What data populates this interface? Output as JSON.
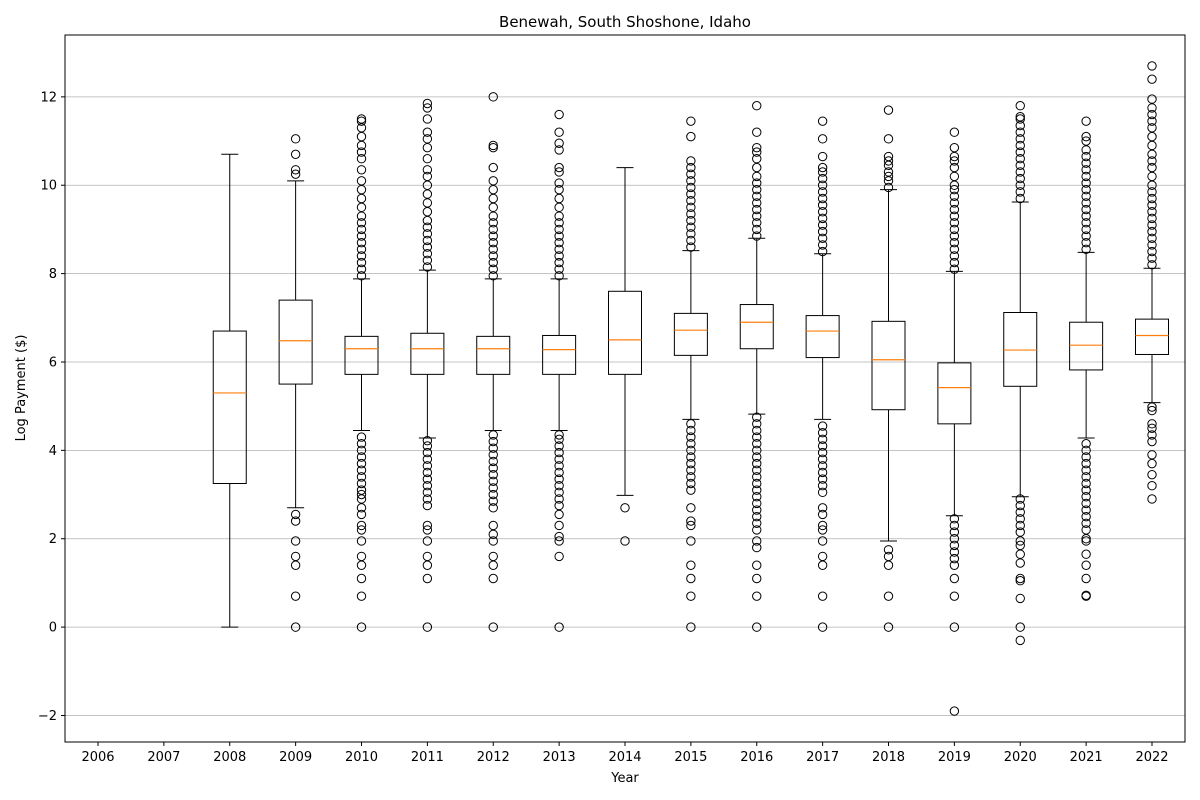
{
  "chart_data": {
    "type": "box",
    "title": "Benewah, South Shoshone, Idaho",
    "xlabel": "Year",
    "ylabel": "Log Payment ($)",
    "ylim": [
      -2.6,
      13.4
    ],
    "yticks": [
      -2,
      0,
      2,
      4,
      6,
      8,
      10,
      12
    ],
    "grid": "y",
    "colors": {
      "box": "#000000",
      "median": "#ff7f0e",
      "grid": "#b0b0b0"
    },
    "categories": [
      "2006",
      "2007",
      "2008",
      "2009",
      "2010",
      "2011",
      "2012",
      "2013",
      "2014",
      "2015",
      "2016",
      "2017",
      "2018",
      "2019",
      "2020",
      "2021",
      "2022"
    ],
    "boxes": [
      null,
      null,
      {
        "whislo": 0.0,
        "q1": 3.25,
        "median": 5.3,
        "q3": 6.7,
        "whishi": 10.7,
        "fliers": []
      },
      {
        "whislo": 2.7,
        "q1": 5.5,
        "median": 6.48,
        "q3": 7.4,
        "whishi": 10.1,
        "fliers": [
          0,
          0.7,
          1.4,
          1.6,
          1.95,
          2.4,
          2.55,
          10.25,
          10.35,
          10.7,
          11.05
        ]
      },
      {
        "whislo": 4.45,
        "q1": 5.72,
        "median": 6.3,
        "q3": 6.58,
        "whishi": 7.88,
        "fliers": [
          0,
          0.7,
          1.1,
          1.4,
          1.6,
          1.95,
          2.2,
          2.3,
          2.55,
          2.7,
          2.9,
          3.0,
          3.1,
          3.25,
          3.4,
          3.55,
          3.7,
          3.85,
          4.0,
          4.15,
          4.3,
          7.95,
          8.1,
          8.25,
          8.4,
          8.55,
          8.7,
          8.85,
          9.0,
          9.15,
          9.3,
          9.5,
          9.7,
          9.9,
          10.1,
          10.35,
          10.6,
          10.75,
          10.9,
          11.1,
          11.3,
          11.45,
          11.5
        ]
      },
      {
        "whislo": 4.28,
        "q1": 5.72,
        "median": 6.3,
        "q3": 6.65,
        "whishi": 8.08,
        "fliers": [
          0,
          1.1,
          1.4,
          1.6,
          1.95,
          2.2,
          2.3,
          2.75,
          2.9,
          3.05,
          3.2,
          3.35,
          3.5,
          3.65,
          3.8,
          3.95,
          4.1,
          4.22,
          8.15,
          8.3,
          8.45,
          8.6,
          8.75,
          8.9,
          9.05,
          9.2,
          9.4,
          9.6,
          9.8,
          10.0,
          10.2,
          10.35,
          10.6,
          10.85,
          11.05,
          11.2,
          11.5,
          11.75,
          11.85
        ]
      },
      {
        "whislo": 4.45,
        "q1": 5.72,
        "median": 6.3,
        "q3": 6.58,
        "whishi": 7.88,
        "fliers": [
          0,
          1.1,
          1.4,
          1.6,
          1.95,
          2.1,
          2.3,
          2.7,
          2.85,
          3.0,
          3.15,
          3.3,
          3.45,
          3.6,
          3.75,
          3.9,
          4.05,
          4.2,
          4.35,
          7.95,
          8.1,
          8.25,
          8.4,
          8.55,
          8.7,
          8.85,
          9.0,
          9.15,
          9.3,
          9.5,
          9.7,
          9.9,
          10.1,
          10.4,
          10.85,
          10.9,
          12.0
        ]
      },
      {
        "whislo": 4.45,
        "q1": 5.72,
        "median": 6.28,
        "q3": 6.6,
        "whishi": 7.88,
        "fliers": [
          0,
          1.6,
          1.95,
          2.05,
          2.3,
          2.55,
          2.75,
          2.9,
          3.05,
          3.2,
          3.35,
          3.5,
          3.65,
          3.8,
          3.95,
          4.1,
          4.25,
          4.35,
          7.95,
          8.1,
          8.25,
          8.4,
          8.55,
          8.7,
          8.85,
          9.0,
          9.15,
          9.3,
          9.5,
          9.7,
          9.9,
          10.05,
          10.3,
          10.4,
          10.8,
          10.95,
          11.2,
          11.6
        ]
      },
      {
        "whislo": 2.98,
        "q1": 5.72,
        "median": 6.5,
        "q3": 7.6,
        "whishi": 10.4,
        "fliers": [
          1.95,
          2.7
        ]
      },
      {
        "whislo": 4.7,
        "q1": 6.15,
        "median": 6.72,
        "q3": 7.1,
        "whishi": 8.52,
        "fliers": [
          0,
          0.7,
          1.1,
          1.4,
          1.95,
          2.3,
          2.4,
          2.7,
          3.1,
          3.25,
          3.4,
          3.55,
          3.7,
          3.85,
          4.0,
          4.15,
          4.3,
          4.45,
          4.6,
          8.6,
          8.75,
          8.9,
          9.05,
          9.2,
          9.35,
          9.5,
          9.65,
          9.8,
          9.95,
          10.1,
          10.25,
          10.4,
          10.55,
          11.1,
          11.45
        ]
      },
      {
        "whislo": 4.82,
        "q1": 6.3,
        "median": 6.9,
        "q3": 7.3,
        "whishi": 8.8,
        "fliers": [
          0,
          0.7,
          1.1,
          1.4,
          1.8,
          1.95,
          2.2,
          2.35,
          2.5,
          2.65,
          2.8,
          2.95,
          3.1,
          3.25,
          3.4,
          3.55,
          3.7,
          3.85,
          4.0,
          4.15,
          4.3,
          4.45,
          4.6,
          4.75,
          8.85,
          9.0,
          9.15,
          9.3,
          9.45,
          9.6,
          9.75,
          9.9,
          10.05,
          10.2,
          10.4,
          10.6,
          10.75,
          10.85,
          11.2,
          11.8
        ]
      },
      {
        "whislo": 4.7,
        "q1": 6.1,
        "median": 6.7,
        "q3": 7.05,
        "whishi": 8.45,
        "fliers": [
          0,
          0.7,
          1.4,
          1.6,
          1.95,
          2.2,
          2.3,
          2.55,
          2.7,
          3.05,
          3.2,
          3.35,
          3.5,
          3.65,
          3.8,
          3.95,
          4.1,
          4.25,
          4.4,
          4.55,
          8.5,
          8.65,
          8.8,
          8.95,
          9.1,
          9.25,
          9.4,
          9.55,
          9.7,
          9.85,
          10.0,
          10.15,
          10.3,
          10.4,
          10.65,
          11.05,
          11.45
        ]
      },
      {
        "whislo": 1.95,
        "q1": 4.92,
        "median": 6.05,
        "q3": 6.92,
        "whishi": 9.9,
        "fliers": [
          0,
          0.7,
          1.4,
          1.6,
          1.75,
          9.95,
          10.1,
          10.2,
          10.3,
          10.45,
          10.55,
          10.65,
          11.05,
          11.7
        ]
      },
      {
        "whislo": 2.52,
        "q1": 4.6,
        "median": 5.42,
        "q3": 5.98,
        "whishi": 8.05,
        "fliers": [
          -1.9,
          0,
          0.7,
          1.1,
          1.4,
          1.55,
          1.7,
          1.85,
          2.0,
          2.15,
          2.3,
          2.45,
          8.1,
          8.25,
          8.4,
          8.55,
          8.7,
          8.85,
          9.0,
          9.15,
          9.3,
          9.45,
          9.6,
          9.75,
          9.9,
          10.0,
          10.2,
          10.4,
          10.55,
          10.65,
          10.85,
          11.2
        ]
      },
      {
        "whislo": 2.95,
        "q1": 5.45,
        "median": 6.27,
        "q3": 7.12,
        "whishi": 9.62,
        "fliers": [
          -0.3,
          0,
          0.65,
          1.05,
          1.1,
          1.45,
          1.65,
          1.85,
          1.95,
          2.15,
          2.3,
          2.45,
          2.6,
          2.75,
          2.9,
          9.7,
          9.85,
          10.0,
          10.15,
          10.3,
          10.45,
          10.6,
          10.75,
          10.9,
          11.05,
          11.2,
          11.35,
          11.5,
          11.55,
          11.8
        ]
      },
      {
        "whislo": 4.28,
        "q1": 5.82,
        "median": 6.38,
        "q3": 6.9,
        "whishi": 8.48,
        "fliers": [
          0.7,
          0.72,
          1.1,
          1.4,
          1.65,
          1.95,
          2.0,
          2.2,
          2.35,
          2.5,
          2.65,
          2.8,
          2.95,
          3.1,
          3.25,
          3.4,
          3.55,
          3.7,
          3.85,
          4.0,
          4.15,
          8.55,
          8.7,
          8.85,
          9.0,
          9.15,
          9.3,
          9.45,
          9.6,
          9.75,
          9.9,
          10.05,
          10.2,
          10.35,
          10.5,
          10.65,
          10.8,
          11.0,
          11.1,
          11.45
        ]
      },
      {
        "whislo": 5.08,
        "q1": 6.17,
        "median": 6.6,
        "q3": 6.97,
        "whishi": 8.12,
        "fliers": [
          2.9,
          3.2,
          3.45,
          3.7,
          3.9,
          4.2,
          4.35,
          4.5,
          4.6,
          4.9,
          4.98,
          8.2,
          8.35,
          8.5,
          8.65,
          8.8,
          8.95,
          9.1,
          9.25,
          9.4,
          9.55,
          9.7,
          9.85,
          10.0,
          10.2,
          10.4,
          10.55,
          10.7,
          10.9,
          11.1,
          11.3,
          11.45,
          11.6,
          11.75,
          11.95,
          12.4,
          12.7
        ]
      }
    ]
  }
}
